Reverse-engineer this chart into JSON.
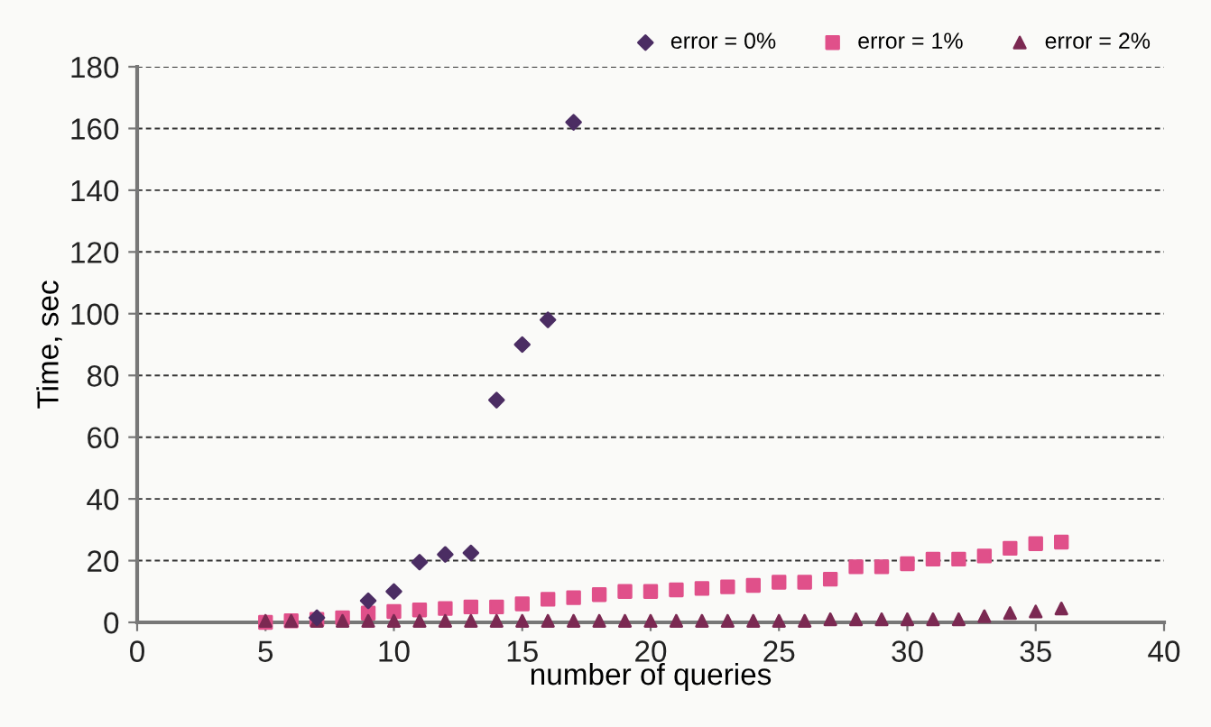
{
  "chart_data": {
    "type": "scatter",
    "xlabel": "number of queries",
    "ylabel": "Time, sec",
    "xlim": [
      0,
      40
    ],
    "xticks": [
      0,
      5,
      10,
      15,
      20,
      25,
      30,
      35,
      40
    ],
    "ylim": [
      0,
      180
    ],
    "yticks": [
      0,
      20,
      40,
      60,
      80,
      100,
      120,
      140,
      160,
      180
    ],
    "grid": "y",
    "legend": "top right",
    "series": [
      {
        "name": "error = 0%",
        "color": "#4b2d63",
        "marker": "diamond",
        "x": [
          7,
          9,
          10,
          11,
          12,
          13,
          14,
          15,
          16,
          17
        ],
        "values": [
          1.5,
          7,
          10,
          19.5,
          22,
          22.5,
          72,
          90,
          98,
          162
        ]
      },
      {
        "name": "error = 1%",
        "color": "#e0508a",
        "marker": "square",
        "x": [
          5,
          6,
          7,
          8,
          9,
          10,
          11,
          12,
          13,
          14,
          15,
          16,
          17,
          18,
          19,
          20,
          21,
          22,
          23,
          24,
          25,
          26,
          27,
          28,
          29,
          30,
          31,
          32,
          33,
          34,
          35,
          36
        ],
        "values": [
          0,
          0.5,
          1,
          1.5,
          3,
          3.5,
          4,
          4.5,
          5,
          5,
          6,
          7.5,
          8,
          9,
          10,
          10,
          10.5,
          11,
          11.5,
          12,
          13,
          13,
          14,
          18,
          18,
          19,
          20.5,
          20.5,
          21.5,
          24,
          25.5,
          26
        ]
      },
      {
        "name": "error = 2%",
        "color": "#7b2952",
        "marker": "triangle",
        "x": [
          5,
          6,
          7,
          8,
          9,
          10,
          11,
          12,
          13,
          14,
          15,
          16,
          17,
          18,
          19,
          20,
          21,
          22,
          23,
          24,
          25,
          26,
          27,
          28,
          29,
          30,
          31,
          32,
          33,
          34,
          35,
          36
        ],
        "values": [
          0.5,
          0.5,
          0.5,
          0.5,
          0.5,
          0.5,
          0.5,
          0.5,
          0.5,
          0.5,
          0.5,
          0.5,
          0.5,
          0.5,
          0.5,
          0.5,
          0.5,
          0.5,
          0.5,
          0.5,
          0.5,
          0.5,
          1,
          1,
          1,
          1,
          1,
          1,
          2,
          3,
          3.5,
          4.5
        ]
      }
    ]
  }
}
